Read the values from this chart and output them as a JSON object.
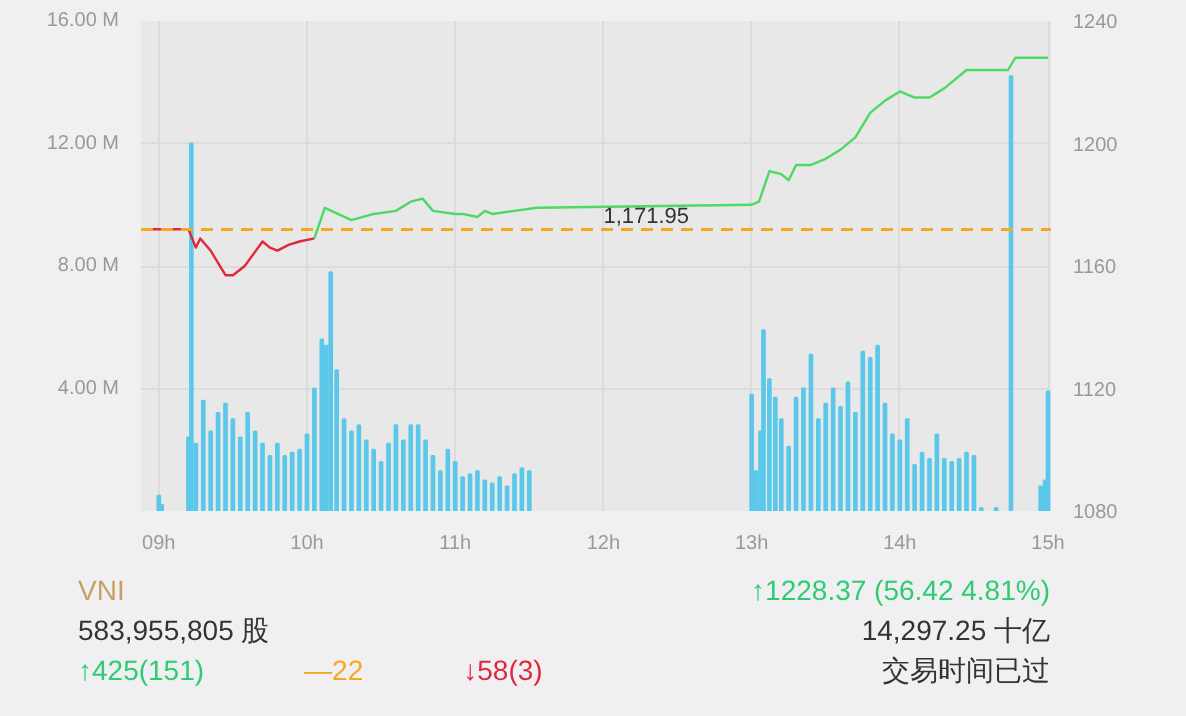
{
  "chart_data": {
    "type": "bar",
    "xlim": [
      8.88,
      15.02
    ],
    "xticks": [
      {
        "value": 9,
        "label": "09h"
      },
      {
        "value": 10,
        "label": "10h"
      },
      {
        "value": 11,
        "label": "11h"
      },
      {
        "value": 12,
        "label": "12h"
      },
      {
        "value": 13,
        "label": "13h"
      },
      {
        "value": 14,
        "label": "14h"
      },
      {
        "value": 15,
        "label": "15h"
      }
    ],
    "ylim": [
      0,
      16
    ],
    "yticks": [
      {
        "value": 0,
        "label": null
      },
      {
        "value": 4,
        "label": "4.00 M"
      },
      {
        "value": 8,
        "label": "8.00 M"
      },
      {
        "value": 12,
        "label": "12.00 M"
      },
      {
        "value": 16,
        "label": "16.00 M"
      }
    ],
    "y2lim": [
      1080,
      1240
    ],
    "y2ticks": [
      1080,
      1120,
      1160,
      1200,
      1240
    ],
    "grid": true,
    "series": [
      {
        "color": "#5bc8ea",
        "x": [
          9.0,
          9.02,
          9.2,
          9.22,
          9.25,
          9.3,
          9.35,
          9.4,
          9.45,
          9.5,
          9.55,
          9.6,
          9.65,
          9.7,
          9.75,
          9.8,
          9.85,
          9.9,
          9.95,
          10.0,
          10.05,
          10.1,
          10.13,
          10.16,
          10.2,
          10.25,
          10.3,
          10.35,
          10.4,
          10.45,
          10.5,
          10.55,
          10.6,
          10.65,
          10.7,
          10.75,
          10.8,
          10.85,
          10.9,
          10.95,
          11.0,
          11.05,
          11.1,
          11.15,
          11.2,
          11.25,
          11.3,
          11.35,
          11.4,
          11.45,
          11.5,
          13.0,
          13.03,
          13.06,
          13.08,
          13.12,
          13.16,
          13.2,
          13.25,
          13.3,
          13.35,
          13.4,
          13.45,
          13.5,
          13.55,
          13.6,
          13.65,
          13.7,
          13.75,
          13.8,
          13.85,
          13.9,
          13.95,
          14.0,
          14.05,
          14.1,
          14.15,
          14.2,
          14.25,
          14.3,
          14.35,
          14.4,
          14.45,
          14.5,
          14.55,
          14.65,
          14.75,
          14.95,
          14.98,
          15.0
        ],
        "values": [
          0.5,
          0.2,
          2.4,
          12.0,
          2.2,
          3.6,
          2.6,
          3.2,
          3.5,
          3.0,
          2.4,
          3.2,
          2.6,
          2.2,
          1.8,
          2.2,
          1.8,
          1.9,
          2.0,
          2.5,
          4.0,
          5.6,
          5.4,
          7.8,
          4.6,
          3.0,
          2.6,
          2.8,
          2.3,
          2.0,
          1.6,
          2.2,
          2.8,
          2.3,
          2.8,
          2.8,
          2.3,
          1.8,
          1.3,
          2.0,
          1.6,
          1.1,
          1.2,
          1.3,
          1.0,
          0.9,
          1.1,
          0.8,
          1.2,
          1.4,
          1.3,
          3.8,
          1.3,
          2.6,
          5.9,
          4.3,
          3.7,
          3.0,
          2.1,
          3.7,
          4.0,
          5.1,
          3.0,
          3.5,
          4.0,
          3.4,
          4.2,
          3.2,
          5.2,
          5.0,
          5.4,
          3.5,
          2.5,
          2.3,
          3.0,
          1.5,
          1.9,
          1.7,
          2.5,
          1.7,
          1.6,
          1.7,
          1.9,
          1.8,
          0.1,
          0.1,
          14.2,
          0.8,
          1.0,
          3.9
        ]
      },
      {
        "type": "line",
        "axis": "y2",
        "color": "#e0283c",
        "x": [
          8.95,
          9.2,
          9.25,
          9.28,
          9.35,
          9.45,
          9.5,
          9.58,
          9.7,
          9.75,
          9.8,
          9.88,
          9.95,
          10.05
        ],
        "values": [
          1172,
          1172,
          1166,
          1169,
          1165,
          1157,
          1157,
          1160,
          1168,
          1166,
          1165,
          1167,
          1168,
          1169
        ]
      },
      {
        "type": "line",
        "axis": "y2",
        "color": "#4cd964",
        "x": [
          10.05,
          10.12,
          10.3,
          10.45,
          10.6,
          10.7,
          10.78,
          10.85,
          11.0,
          11.05,
          11.15,
          11.2,
          11.25,
          11.4,
          11.55,
          13.0,
          13.05,
          13.12,
          13.2,
          13.25,
          13.3,
          13.4,
          13.5,
          13.6,
          13.7,
          13.8,
          13.9,
          14.0,
          14.1,
          14.2,
          14.3,
          14.45,
          14.73,
          14.78,
          15.0
        ],
        "values": [
          1169,
          1179,
          1175,
          1177,
          1178,
          1181,
          1182,
          1178,
          1177,
          1177,
          1176,
          1178,
          1177,
          1178,
          1179,
          1180,
          1181,
          1191,
          1190,
          1188,
          1193,
          1193,
          1195,
          1198,
          1202,
          1210,
          1214,
          1217,
          1215,
          1215,
          1218,
          1224,
          1224,
          1228,
          1228
        ]
      }
    ],
    "ref_lines": [
      {
        "axis": "y2",
        "value": 1171.95,
        "label": "1,171.95",
        "color": "#f5a623",
        "line_style": "dashed"
      }
    ],
    "annotations": [
      "VNI",
      "↑1228.37 (56.42 4.81%)",
      "583,955,805 股",
      "14,297.25 十亿",
      "↑425(151)",
      "—22",
      "↓58(3)",
      "交易时间已过"
    ]
  }
}
